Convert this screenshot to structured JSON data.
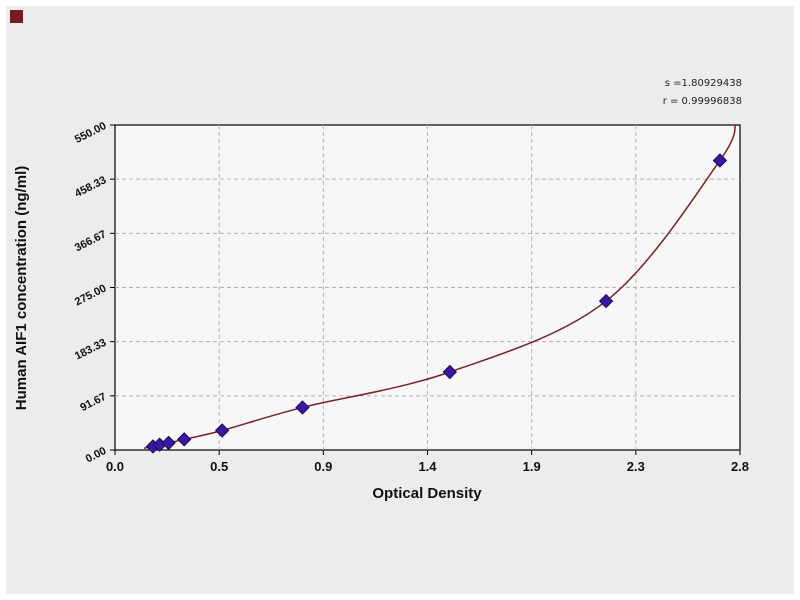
{
  "annotations": {
    "line1": "s =1.80929438",
    "line2": "r = 0.99996838"
  },
  "colors": {
    "panel_background": "#ececec",
    "plot_background": "#f7f7f7",
    "grid": "#b3b3b3",
    "border": "#000000",
    "curve": "#7b2125",
    "point_fill": "#3a16a8",
    "point_stroke": "#1d0b55",
    "corner_mark": "#7b1a20"
  },
  "chart_data": {
    "type": "scatter",
    "title": "",
    "xlabel": "Optical Density",
    "ylabel": "Human AIF1 concentration (ng/ml)",
    "xlim": [
      0,
      2.8
    ],
    "ylim": [
      0,
      550
    ],
    "grid": true,
    "legend": "none",
    "x_ticks": [
      0,
      0.4667,
      0.9333,
      1.4,
      1.8667,
      2.3333,
      2.8
    ],
    "x_tick_labels": [
      "0.0",
      "0.5",
      "0.9",
      "1.4",
      "1.9",
      "2.3",
      "2.8"
    ],
    "y_ticks": [
      0,
      91.67,
      183.33,
      275,
      366.67,
      458.33,
      550
    ],
    "y_tick_labels": [
      "0.00",
      "91.67",
      "183.33",
      "275.00",
      "366.67",
      "458.33",
      "550.00"
    ],
    "points": [
      [
        0.17,
        6
      ],
      [
        0.2,
        9
      ],
      [
        0.24,
        12
      ],
      [
        0.31,
        18
      ],
      [
        0.48,
        33
      ],
      [
        0.84,
        72
      ],
      [
        1.5,
        132
      ],
      [
        2.2,
        252
      ],
      [
        2.71,
        490
      ]
    ],
    "curve": [
      [
        0.13,
        3
      ],
      [
        0.17,
        6
      ],
      [
        0.2,
        9
      ],
      [
        0.24,
        12
      ],
      [
        0.31,
        18
      ],
      [
        0.48,
        33
      ],
      [
        0.84,
        72
      ],
      [
        1.5,
        132
      ],
      [
        2.2,
        252
      ],
      [
        2.71,
        490
      ],
      [
        2.78,
        560
      ]
    ]
  }
}
